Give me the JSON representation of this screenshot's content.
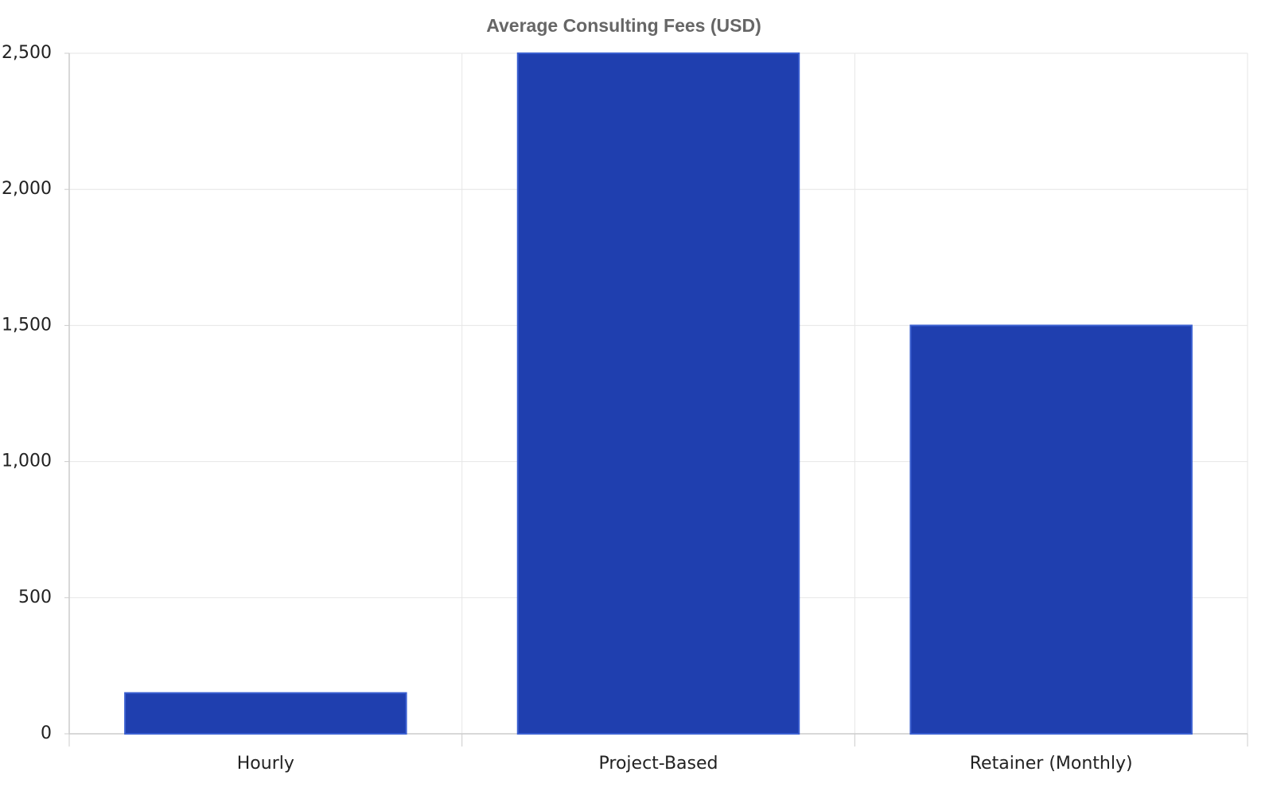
{
  "chart_data": {
    "type": "bar",
    "title": "Average Consulting Fees (USD)",
    "categories": [
      "Hourly",
      "Project-Based",
      "Retainer (Monthly)"
    ],
    "values": [
      150,
      2500,
      1500
    ],
    "color": "#1f3faf",
    "ylim": [
      0,
      2500
    ],
    "yticks": [
      0,
      500,
      {
        "value": 1000,
        "label": "1,000"
      },
      {
        "value": 1500,
        "label": "1,500"
      },
      {
        "value": 2000,
        "label": "2,000"
      },
      {
        "value": 2500,
        "label": "2,500"
      }
    ],
    "grid": true
  }
}
